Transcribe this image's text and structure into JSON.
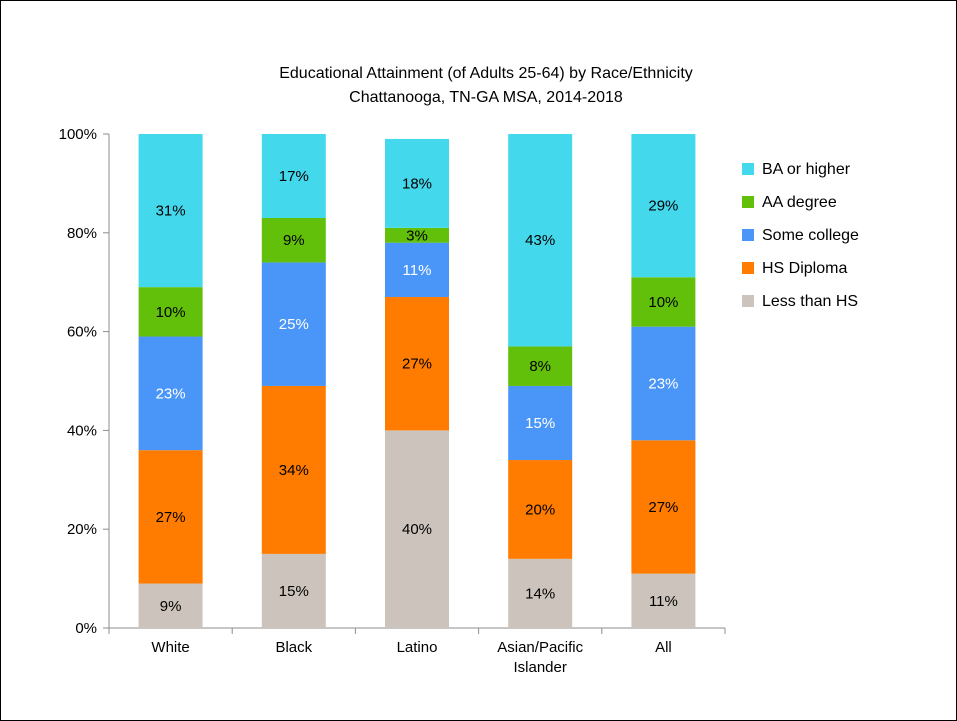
{
  "chart_data": {
    "type": "bar",
    "stacked": true,
    "title": "Educational Attainment (of Adults 25-64) by Race/Ethnicity",
    "subtitle": "Chattanooga, TN-GA MSA, 2014-2018",
    "categories": [
      [
        "White"
      ],
      [
        "Black"
      ],
      [
        "Latino"
      ],
      [
        "Asian/Pacific",
        "Islander"
      ],
      [
        "All"
      ]
    ],
    "y_ticks": [
      "0%",
      "20%",
      "40%",
      "60%",
      "80%",
      "100%"
    ],
    "ylim": [
      0,
      100
    ],
    "grid": false,
    "legend_position": "right",
    "series": [
      {
        "name": "Less than HS",
        "color": "#CCC4BC",
        "label_color": "#000000",
        "values": [
          9,
          15,
          40,
          14,
          11
        ],
        "labels": [
          "9%",
          "15%",
          "40%",
          "14%",
          "11%"
        ]
      },
      {
        "name": "HS Diploma",
        "color": "#FF7C00",
        "label_color": "#000000",
        "values": [
          27,
          34,
          27,
          20,
          27
        ],
        "labels": [
          "27%",
          "34%",
          "27%",
          "20%",
          "27%"
        ]
      },
      {
        "name": "Some college",
        "color": "#4A96F8",
        "label_color": "#ffffff",
        "values": [
          23,
          25,
          11,
          15,
          23
        ],
        "labels": [
          "23%",
          "25%",
          "11%",
          "15%",
          "23%"
        ]
      },
      {
        "name": "AA degree",
        "color": "#62BF0A",
        "label_color": "#000000",
        "values": [
          10,
          9,
          3,
          8,
          10
        ],
        "labels": [
          "10%",
          "9%",
          "3%",
          "8%",
          "10%"
        ]
      },
      {
        "name": "BA or higher",
        "color": "#44D8EC",
        "label_color": "#000000",
        "values": [
          31,
          17,
          18,
          43,
          29
        ],
        "labels": [
          "31%",
          "17%",
          "18%",
          "43%",
          "29%"
        ]
      }
    ],
    "legend_order": [
      4,
      3,
      2,
      1,
      0
    ]
  }
}
